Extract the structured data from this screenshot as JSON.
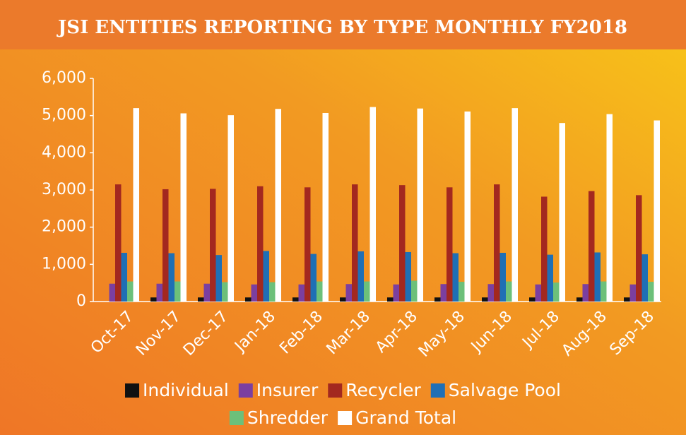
{
  "chart_data": {
    "type": "bar",
    "title": "JSI ENTITIES REPORTING BY TYPE MONTHLY FY2018",
    "categories": [
      "Oct-17",
      "Nov-17",
      "Dec-17",
      "Jan-18",
      "Feb-18",
      "Mar-18",
      "Apr-18",
      "May-18",
      "Jun-18",
      "Jul-18",
      "Aug-18",
      "Sep-18"
    ],
    "series": [
      {
        "name": "Individual",
        "color": "#111111",
        "values": [
          0,
          110,
          110,
          110,
          110,
          110,
          110,
          110,
          110,
          110,
          110,
          110
        ]
      },
      {
        "name": "Insurer",
        "color": "#7b3fa0",
        "values": [
          480,
          480,
          480,
          460,
          460,
          470,
          460,
          470,
          470,
          460,
          470,
          460
        ]
      },
      {
        "name": "Recycler",
        "color": "#a3281f",
        "values": [
          3150,
          3020,
          3030,
          3100,
          3070,
          3150,
          3130,
          3070,
          3150,
          2820,
          2970,
          2860
        ]
      },
      {
        "name": "Salvage Pool",
        "color": "#1f6fb5",
        "values": [
          1310,
          1300,
          1250,
          1360,
          1280,
          1350,
          1330,
          1300,
          1310,
          1260,
          1320,
          1270
        ]
      },
      {
        "name": "Shredder",
        "color": "#6cc07a",
        "values": [
          540,
          540,
          520,
          520,
          540,
          540,
          560,
          530,
          540,
          510,
          540,
          530
        ]
      },
      {
        "name": "Grand Total",
        "color": "#ffffff",
        "values": [
          5200,
          5060,
          5010,
          5180,
          5070,
          5230,
          5190,
          5110,
          5200,
          4800,
          5040,
          4870
        ]
      }
    ],
    "ylim": [
      0,
      6000
    ],
    "yticks": [
      0,
      {
        "value": 1000,
        "label": "1,000"
      },
      {
        "value": 2000,
        "label": "2,000"
      },
      {
        "value": 3000,
        "label": "3,000"
      },
      {
        "value": 4000,
        "label": "4,000"
      },
      {
        "value": 5000,
        "label": "5,000"
      },
      {
        "value": 6000,
        "label": "6,000"
      }
    ]
  }
}
